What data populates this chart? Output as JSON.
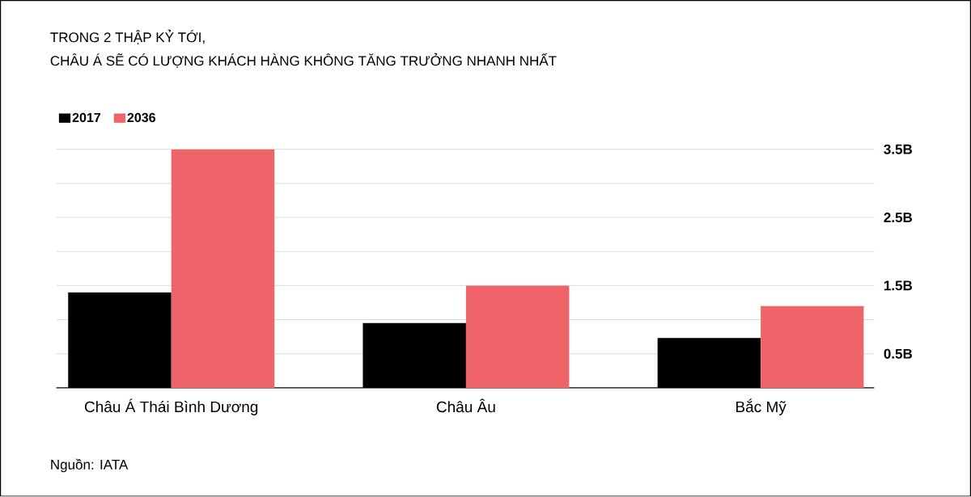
{
  "chart_data": {
    "type": "bar",
    "title": "TRONG 2 THẬP KỶ TỚI,",
    "subtitle": "CHÂU Á SẼ CÓ LƯỢNG KHÁCH HÀNG KHÔNG TĂNG TRƯỞNG NHANH NHẤT",
    "categories": [
      "Châu Á Thái Bình Dương",
      "Châu Âu",
      "Bắc Mỹ"
    ],
    "series": [
      {
        "name": "2017",
        "color": "#000000",
        "values": [
          1.4,
          0.95,
          0.73
        ]
      },
      {
        "name": "2036",
        "color": "#ef6468",
        "values": [
          3.5,
          1.5,
          1.2
        ]
      }
    ],
    "ylim": [
      0,
      3.5
    ],
    "yticks": [
      {
        "value": 0.5,
        "label": "0.5B"
      },
      {
        "value": 1,
        "label": null
      },
      {
        "value": 1.5,
        "label": "1.5B"
      },
      {
        "value": 2,
        "label": null
      },
      {
        "value": 2.5,
        "label": "2.5B"
      },
      {
        "value": 3,
        "label": null
      },
      {
        "value": 3.5,
        "label": "3.5B"
      }
    ],
    "grid": "y",
    "legend": "top left",
    "annotations": [
      "Nguồn: IATA"
    ]
  }
}
